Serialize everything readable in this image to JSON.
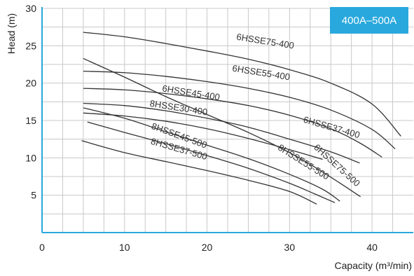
{
  "chart_data": {
    "type": "line",
    "title": "",
    "badge": "400A–500A",
    "xlabel": "Capacity (m³/min)",
    "ylabel": "Head (m)",
    "xlim": [
      0,
      45
    ],
    "ylim": [
      0,
      30
    ],
    "x_ticks": [
      0,
      10,
      20,
      30,
      40
    ],
    "y_ticks": [
      5,
      10,
      15,
      20,
      25,
      30
    ],
    "grid": true,
    "colors": {
      "axis": "#29a8dd",
      "badge": "#29a8dd",
      "curve": "#333333",
      "grid": "#c8c8c8"
    },
    "series": [
      {
        "name": "6HSSE75-400",
        "label_at": [
          27,
          25.2
        ],
        "label_angle": 9,
        "points": [
          [
            5,
            26.8
          ],
          [
            10,
            26.2
          ],
          [
            15,
            25.3
          ],
          [
            20,
            24.3
          ],
          [
            25,
            23.2
          ],
          [
            30,
            21.8
          ],
          [
            35,
            20.0
          ],
          [
            40,
            17.2
          ],
          [
            43.5,
            12.9
          ]
        ]
      },
      {
        "name": "6HSSE55-400",
        "label_at": [
          26.5,
          21.0
        ],
        "label_angle": 9,
        "points": [
          [
            5,
            21.6
          ],
          [
            10,
            21.4
          ],
          [
            15,
            20.9
          ],
          [
            20,
            20.2
          ],
          [
            25,
            19.3
          ],
          [
            30,
            18.1
          ],
          [
            35,
            16.4
          ],
          [
            40,
            13.8
          ],
          [
            42.8,
            11.2
          ]
        ]
      },
      {
        "name": "6HSSE45-400",
        "label_at": [
          18,
          18.3
        ],
        "label_angle": 9,
        "points": [
          [
            5,
            19.3
          ],
          [
            10,
            19.1
          ],
          [
            15,
            18.6
          ],
          [
            20,
            17.9
          ],
          [
            25,
            17.0
          ],
          [
            30,
            15.7
          ],
          [
            35,
            13.9
          ],
          [
            38.5,
            12.0
          ],
          [
            41.2,
            10.1
          ]
        ]
      },
      {
        "name": "6HSSE37-400",
        "label_at": [
          35,
          13.7
        ],
        "label_angle": 16,
        "points": [
          [
            5,
            17.3
          ],
          [
            10,
            17.0
          ],
          [
            15,
            16.3
          ],
          [
            20,
            15.3
          ],
          [
            25,
            14.1
          ],
          [
            30,
            12.5
          ],
          [
            35,
            10.8
          ],
          [
            38.5,
            9.3
          ]
        ]
      },
      {
        "name": "6HSSE75-500",
        "label_at": [
          35.5,
          8.7
        ],
        "label_angle": 42,
        "points": [
          [
            5,
            23.3
          ],
          [
            10,
            20.8
          ],
          [
            15,
            18.2
          ],
          [
            20,
            15.8
          ],
          [
            25,
            13.4
          ],
          [
            30,
            10.7
          ],
          [
            33,
            8.8
          ],
          [
            36,
            6.7
          ],
          [
            38.6,
            4.8
          ]
        ]
      },
      {
        "name": "8HSSE30-400",
        "label_at": [
          16.5,
          16.3
        ],
        "label_angle": 9,
        "points": [
          [
            5,
            16.0
          ],
          [
            10,
            15.6
          ],
          [
            15,
            14.9
          ],
          [
            20,
            13.9
          ],
          [
            25,
            12.6
          ],
          [
            30,
            11.1
          ],
          [
            34,
            9.8
          ]
        ]
      },
      {
        "name": "8HSSE45-500",
        "label_at": [
          16.5,
          12.6
        ],
        "label_angle": 20,
        "points": [
          [
            5,
            16.7
          ],
          [
            10,
            15.3
          ],
          [
            15,
            13.5
          ],
          [
            20,
            11.7
          ],
          [
            25,
            9.9
          ],
          [
            30,
            7.8
          ],
          [
            34,
            5.8
          ],
          [
            36.1,
            4.2
          ]
        ]
      },
      {
        "name": "8HSSE55-500",
        "label_at": [
          31.5,
          9.1
        ],
        "label_angle": 32,
        "points": [
          [
            5.5,
            14.8
          ],
          [
            10,
            13.4
          ],
          [
            15,
            11.9
          ],
          [
            20,
            10.3
          ],
          [
            25,
            8.6
          ],
          [
            30,
            6.6
          ],
          [
            33,
            5.2
          ],
          [
            35.5,
            4.0
          ]
        ]
      },
      {
        "name": "8HSSE37-500",
        "label_at": [
          16.5,
          10.8
        ],
        "label_angle": 16,
        "points": [
          [
            4.8,
            12.3
          ],
          [
            10,
            10.7
          ],
          [
            15,
            9.5
          ],
          [
            20,
            8.3
          ],
          [
            25,
            7.0
          ],
          [
            30,
            5.5
          ],
          [
            33.3,
            3.8
          ]
        ]
      }
    ]
  }
}
